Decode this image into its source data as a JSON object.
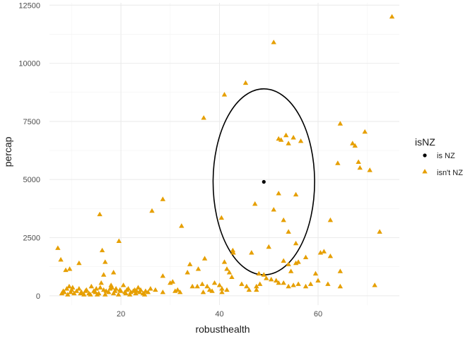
{
  "chart_data": {
    "type": "scatter",
    "title": "",
    "xlabel": "robusthealth",
    "ylabel": "percap",
    "xlim": [
      5.5,
      76.5
    ],
    "ylim": [
      -400,
      12600
    ],
    "xticks": [
      20,
      40,
      60
    ],
    "yticks": [
      0,
      2500,
      5000,
      7500,
      10000,
      12500
    ],
    "ytick_labels": [
      "0",
      "2500",
      "5000",
      "7500",
      "10000",
      "12500"
    ],
    "grid": true,
    "legend": {
      "title": "isNZ",
      "position": "right",
      "entries": [
        {
          "label": "is NZ",
          "shape": "circle",
          "color": "#000000"
        },
        {
          "label": "isn't NZ",
          "shape": "triangle",
          "color": "#E69F00"
        }
      ]
    },
    "ellipse": {
      "cx": 49,
      "cy": 4900,
      "rx": 10.3,
      "ry": 4000,
      "color": "#000000"
    },
    "series": [
      {
        "name": "is NZ",
        "shape": "circle",
        "color": "#000000",
        "points": [
          [
            49,
            4900
          ]
        ]
      },
      {
        "name": "isn't NZ",
        "shape": "triangle",
        "color": "#E69F00",
        "points": [
          [
            75,
            12000
          ],
          [
            51,
            10900
          ],
          [
            45.3,
            9150
          ],
          [
            41,
            8650
          ],
          [
            36.8,
            7650
          ],
          [
            64.5,
            7400
          ],
          [
            69.5,
            7050
          ],
          [
            52,
            6750
          ],
          [
            52.5,
            6700
          ],
          [
            53.5,
            6900
          ],
          [
            54,
            6550
          ],
          [
            55,
            6800
          ],
          [
            56.5,
            6650
          ],
          [
            67,
            6550
          ],
          [
            67.5,
            6450
          ],
          [
            64,
            5700
          ],
          [
            68.2,
            5750
          ],
          [
            68.5,
            5500
          ],
          [
            70.5,
            5400
          ],
          [
            55.5,
            4350
          ],
          [
            52,
            4400
          ],
          [
            47.2,
            3950
          ],
          [
            51,
            3700
          ],
          [
            53,
            3250
          ],
          [
            40.4,
            3350
          ],
          [
            26.3,
            3650
          ],
          [
            28.5,
            4150
          ],
          [
            15.7,
            3500
          ],
          [
            32.3,
            3000
          ],
          [
            62.5,
            3250
          ],
          [
            72.5,
            2750
          ],
          [
            54,
            2750
          ],
          [
            60.5,
            1850
          ],
          [
            61.2,
            1900
          ],
          [
            62.5,
            1700
          ],
          [
            19.6,
            2350
          ],
          [
            16.2,
            1950
          ],
          [
            7.2,
            2050
          ],
          [
            55.5,
            2250
          ],
          [
            50,
            2100
          ],
          [
            42.7,
            1950
          ],
          [
            42.8,
            1850
          ],
          [
            46.5,
            1850
          ],
          [
            37,
            1600
          ],
          [
            57.5,
            1650
          ],
          [
            53,
            1500
          ],
          [
            54,
            1350
          ],
          [
            55.5,
            1400
          ],
          [
            56,
            1450
          ],
          [
            7.8,
            1550
          ],
          [
            8.8,
            1100
          ],
          [
            9.6,
            1150
          ],
          [
            11.5,
            1400
          ],
          [
            16.5,
            900
          ],
          [
            16.8,
            1450
          ],
          [
            18.5,
            1000
          ],
          [
            35.7,
            1150
          ],
          [
            41,
            1450
          ],
          [
            41.5,
            1150
          ],
          [
            42,
            1000
          ],
          [
            42.5,
            800
          ],
          [
            34,
            1350
          ],
          [
            33.5,
            1000
          ],
          [
            28.5,
            850
          ],
          [
            30,
            550
          ],
          [
            30.5,
            600
          ],
          [
            48,
            950
          ],
          [
            49,
            900
          ],
          [
            54.5,
            1050
          ],
          [
            59.5,
            950
          ],
          [
            64.5,
            1050
          ],
          [
            60,
            650
          ],
          [
            62,
            500
          ],
          [
            64.5,
            400
          ],
          [
            71.5,
            450
          ],
          [
            49.5,
            750
          ],
          [
            50.5,
            700
          ],
          [
            51.5,
            650
          ],
          [
            52,
            550
          ],
          [
            53,
            550
          ],
          [
            54,
            400
          ],
          [
            55,
            450
          ],
          [
            56,
            500
          ],
          [
            57.5,
            400
          ],
          [
            58.5,
            500
          ],
          [
            44.5,
            500
          ],
          [
            45.5,
            400
          ],
          [
            47.5,
            400
          ],
          [
            48.2,
            500
          ],
          [
            46,
            250
          ],
          [
            47.5,
            250
          ],
          [
            36.5,
            500
          ],
          [
            37.5,
            400
          ],
          [
            38,
            250
          ],
          [
            39,
            550
          ],
          [
            40,
            450
          ],
          [
            40.5,
            300
          ],
          [
            41.5,
            250
          ],
          [
            36.7,
            150
          ],
          [
            38.5,
            200
          ],
          [
            40.5,
            150
          ],
          [
            34.5,
            400
          ],
          [
            35.5,
            400
          ],
          [
            31,
            200
          ],
          [
            31.5,
            250
          ],
          [
            32,
            150
          ],
          [
            28.5,
            150
          ],
          [
            27,
            250
          ],
          [
            26,
            300
          ],
          [
            25.5,
            150
          ],
          [
            8,
            100
          ],
          [
            8.5,
            150
          ],
          [
            9,
            300
          ],
          [
            9.5,
            400
          ],
          [
            10,
            250
          ],
          [
            10.5,
            100
          ],
          [
            11,
            200
          ],
          [
            11.5,
            300
          ],
          [
            12,
            150
          ],
          [
            12.5,
            50
          ],
          [
            13,
            250
          ],
          [
            13.5,
            100
          ],
          [
            14,
            400
          ],
          [
            14.5,
            200
          ],
          [
            15,
            300
          ],
          [
            15.5,
            100
          ],
          [
            16,
            550
          ],
          [
            16.5,
            250
          ],
          [
            17,
            200
          ],
          [
            17.5,
            150
          ],
          [
            18,
            450
          ],
          [
            18.5,
            100
          ],
          [
            19,
            300
          ],
          [
            19.5,
            50
          ],
          [
            20,
            200
          ],
          [
            20.5,
            450
          ],
          [
            21,
            100
          ],
          [
            21.5,
            300
          ],
          [
            22,
            150
          ],
          [
            22.5,
            200
          ],
          [
            23,
            100
          ],
          [
            23.5,
            350
          ],
          [
            24,
            250
          ],
          [
            24.5,
            100
          ],
          [
            25,
            200
          ],
          [
            9.2,
            50
          ],
          [
            10.2,
            350
          ],
          [
            11.8,
            100
          ],
          [
            12.8,
            200
          ],
          [
            13.8,
            50
          ],
          [
            14.8,
            150
          ],
          [
            15.8,
            350
          ],
          [
            16.8,
            50
          ],
          [
            17.8,
            300
          ],
          [
            18.8,
            200
          ],
          [
            19.8,
            250
          ],
          [
            20.8,
            150
          ],
          [
            21.8,
            50
          ],
          [
            22.8,
            250
          ],
          [
            23.8,
            150
          ],
          [
            24.8,
            50
          ],
          [
            8.3,
            200
          ],
          [
            9.8,
            150
          ],
          [
            15.2,
            50
          ],
          [
            18.2,
            350
          ],
          [
            21.2,
            250
          ],
          [
            23.2,
            200
          ]
        ]
      }
    ]
  }
}
